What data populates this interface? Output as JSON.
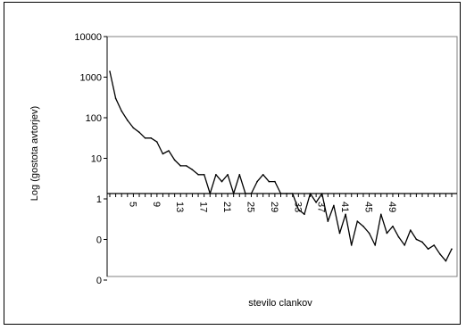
{
  "chart_data": {
    "type": "line",
    "xlabel": "stevilo clankov",
    "ylabel": "Log (gostota avtorjev)",
    "y_scale": "log",
    "y_ticks": [
      "10000",
      "1000",
      "100",
      "10",
      "1",
      "0",
      "0"
    ],
    "x_ticks": [
      "5",
      "9",
      "13",
      "17",
      "21",
      "25",
      "29",
      "33",
      "37",
      "41",
      "45",
      "49"
    ],
    "xlim": [
      1,
      59
    ],
    "grid": false,
    "series": [
      {
        "color": "#000000",
        "x": [
          1,
          2,
          3,
          4,
          5,
          6,
          7,
          8,
          9,
          10,
          11,
          12,
          13,
          14,
          15,
          16,
          17,
          18,
          19,
          20,
          21,
          22,
          23,
          24,
          25,
          26,
          27,
          28,
          29,
          30,
          31,
          32,
          33,
          34,
          35,
          36,
          37,
          38,
          39,
          40,
          41,
          42,
          43,
          44,
          45,
          46,
          47,
          48,
          49,
          50,
          51,
          52,
          53,
          54,
          55,
          56,
          57,
          58,
          59
        ],
        "y": [
          1200,
          250,
          120,
          70,
          45,
          35,
          25,
          25,
          20,
          10,
          12,
          7,
          5,
          5,
          4,
          3,
          3,
          1,
          3,
          2,
          3,
          1,
          3,
          1,
          1,
          2,
          3,
          2,
          2,
          1,
          1,
          1,
          0.4,
          0.3,
          1,
          0.6,
          1,
          0.2,
          0.5,
          0.1,
          0.3,
          0.05,
          0.2,
          0.15,
          0.1,
          0.05,
          0.3,
          0.1,
          0.15,
          0.08,
          0.05,
          0.12,
          0.07,
          0.06,
          0.04,
          0.05,
          0.03,
          0.02,
          0.04
        ]
      }
    ]
  }
}
